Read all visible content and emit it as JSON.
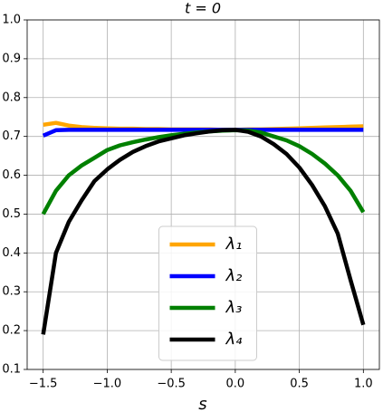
{
  "chart_data": {
    "type": "line",
    "title": "t = 0",
    "xlabel": "s",
    "x": [
      -1.5,
      -1.4,
      -1.3,
      -1.2,
      -1.1,
      -1.0,
      -0.9,
      -0.8,
      -0.7,
      -0.6,
      -0.5,
      -0.4,
      -0.3,
      -0.2,
      -0.1,
      0.0,
      0.1,
      0.2,
      0.3,
      0.4,
      0.5,
      0.6,
      0.7,
      0.8,
      0.9,
      1.0
    ],
    "series": [
      {
        "name": "λ₁",
        "color": "#ffa500",
        "values": [
          0.73,
          0.735,
          0.728,
          0.724,
          0.722,
          0.721,
          0.72,
          0.72,
          0.719,
          0.719,
          0.718,
          0.718,
          0.718,
          0.718,
          0.717,
          0.717,
          0.718,
          0.718,
          0.719,
          0.72,
          0.721,
          0.722,
          0.723,
          0.724,
          0.725,
          0.726
        ]
      },
      {
        "name": "λ₂",
        "color": "#0000ff",
        "values": [
          0.702,
          0.716,
          0.717,
          0.717,
          0.717,
          0.717,
          0.717,
          0.717,
          0.717,
          0.717,
          0.717,
          0.717,
          0.717,
          0.717,
          0.717,
          0.717,
          0.717,
          0.717,
          0.717,
          0.717,
          0.717,
          0.717,
          0.717,
          0.717,
          0.717,
          0.717
        ]
      },
      {
        "name": "λ₃",
        "color": "#008000",
        "values": [
          0.5,
          0.56,
          0.6,
          0.625,
          0.645,
          0.665,
          0.677,
          0.685,
          0.692,
          0.698,
          0.703,
          0.707,
          0.71,
          0.713,
          0.715,
          0.716,
          0.715,
          0.71,
          0.7,
          0.69,
          0.675,
          0.655,
          0.63,
          0.6,
          0.56,
          0.505
        ]
      },
      {
        "name": "λ₄",
        "color": "#000000",
        "values": [
          0.19,
          0.4,
          0.48,
          0.535,
          0.585,
          0.615,
          0.64,
          0.66,
          0.675,
          0.687,
          0.695,
          0.703,
          0.708,
          0.713,
          0.716,
          0.717,
          0.712,
          0.7,
          0.68,
          0.655,
          0.62,
          0.575,
          0.52,
          0.45,
          0.33,
          0.215
        ]
      }
    ],
    "xlim": [
      -1.625,
      1.125
    ],
    "xticks": [
      -1.5,
      -1.0,
      -0.5,
      0.0,
      0.5,
      1.0
    ],
    "ylim": [
      0.1,
      1.0
    ],
    "yticks": [
      0.1,
      0.2,
      0.3,
      0.4,
      0.5,
      0.6,
      0.7,
      0.8,
      0.9,
      1.0
    ],
    "grid": true,
    "legend": "lower center"
  }
}
